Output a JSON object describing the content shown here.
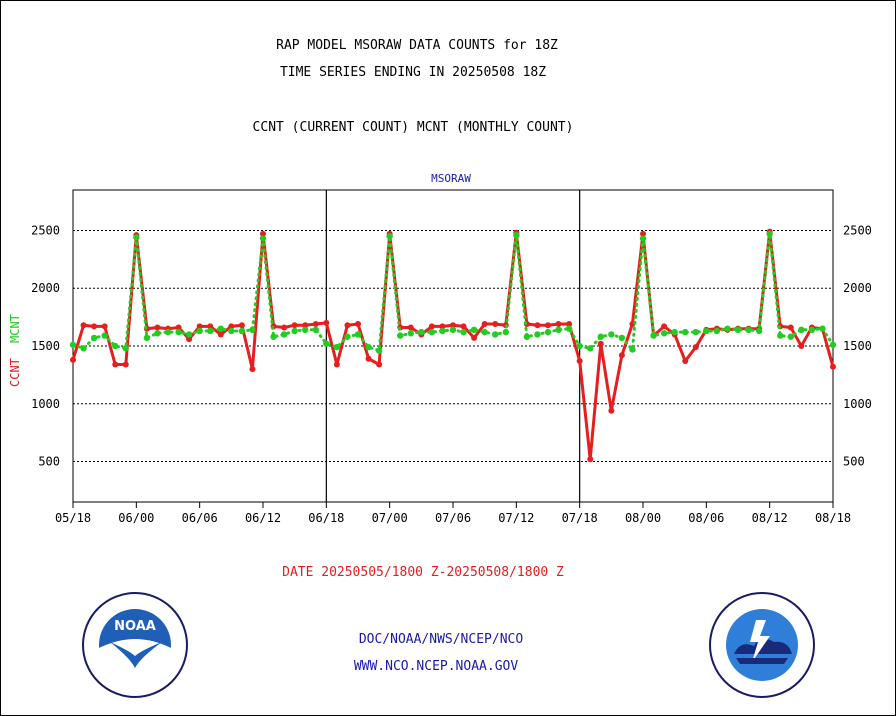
{
  "title": "RAP MODEL MSORAW DATA COUNTS for 18Z",
  "subtitle_line2": "TIME SERIES ENDING IN 20250508 18Z",
  "subtitle_line3": "CCNT (CURRENT COUNT) MCNT (MONTHLY COUNT)",
  "panel_label": "MSORAW",
  "date_range": "DATE 20250505/1800 Z-20250508/1800 Z",
  "credit_line1": "DOC/NOAA/NWS/NCEP/NCO",
  "credit_line2": "WWW.NCO.NCEP.NOAA.GOV",
  "logos": {
    "left": "noaa-logo",
    "right": "national-weather-service-logo",
    "left_text": "NOAA"
  },
  "colors": {
    "ccnt": "#e61e1e",
    "mcnt": "#22cc22",
    "title_text": "#000000",
    "credit_text": "#1a1aa8"
  },
  "chart_data": {
    "type": "line",
    "ylabel_left_ccnt": "CCNT",
    "ylabel_left_mcnt": "MCNT",
    "ylim": [
      150,
      2850
    ],
    "xlim": [
      0,
      72
    ],
    "yticks": [
      500,
      1000,
      1500,
      2000,
      2500
    ],
    "ytick_labels": [
      "500",
      "1000",
      "1500",
      "2000",
      "2500"
    ],
    "xticks": [
      0,
      6,
      12,
      18,
      24,
      30,
      36,
      42,
      48,
      54,
      60,
      66,
      72
    ],
    "xtick_labels": [
      "05/18",
      "06/00",
      "06/06",
      "06/12",
      "06/18",
      "07/00",
      "07/06",
      "07/12",
      "07/18",
      "08/00",
      "08/06",
      "08/12",
      "08/18"
    ],
    "grid": "horizontal dotted",
    "series": [
      {
        "name": "CCNT",
        "x": [
          0,
          1,
          2,
          3,
          4,
          5,
          6,
          7,
          8,
          9,
          10,
          11,
          12,
          13,
          14,
          15,
          16,
          17,
          18,
          19,
          20,
          21,
          22,
          23,
          24,
          25,
          26,
          27,
          28,
          29,
          30,
          31,
          32,
          33,
          34,
          35,
          36,
          37,
          38,
          39,
          40,
          41,
          42,
          43,
          44,
          45,
          46,
          47,
          48,
          49,
          50,
          51,
          52,
          53,
          54,
          55,
          56,
          57,
          58,
          59,
          60,
          61,
          62,
          63,
          64,
          65,
          66,
          67,
          68,
          69,
          70,
          71,
          72
        ],
        "values": [
          1380,
          1680,
          1670,
          1670,
          1340,
          1340,
          2460,
          1650,
          1660,
          1650,
          1660,
          1560,
          1670,
          1670,
          1600,
          1670,
          1680,
          1300,
          2470,
          1670,
          1660,
          1680,
          1680,
          1690,
          1700,
          1340,
          1680,
          1690,
          1390,
          1340,
          2470,
          1660,
          1660,
          1600,
          1670,
          1670,
          1680,
          1670,
          1570,
          1690,
          1690,
          1680,
          2480,
          1690,
          1680,
          1680,
          1690,
          1690,
          1370,
          520,
          1520,
          940,
          1420,
          1690,
          2470,
          1590,
          1670,
          1600,
          1370,
          1490,
          1640,
          1650,
          1640,
          1650,
          1650,
          1650,
          2490,
          1670,
          1660,
          1500,
          1660,
          1650,
          1320
        ]
      },
      {
        "name": "MCNT",
        "x": [
          0,
          1,
          2,
          3,
          4,
          5,
          6,
          7,
          8,
          9,
          10,
          11,
          12,
          13,
          14,
          15,
          16,
          17,
          18,
          19,
          20,
          21,
          22,
          23,
          24,
          25,
          26,
          27,
          28,
          29,
          30,
          31,
          32,
          33,
          34,
          35,
          36,
          37,
          38,
          39,
          40,
          41,
          42,
          43,
          44,
          45,
          46,
          47,
          48,
          49,
          50,
          51,
          52,
          53,
          54,
          55,
          56,
          57,
          58,
          59,
          60,
          61,
          62,
          63,
          64,
          65,
          66,
          67,
          68,
          69,
          70,
          71,
          72
        ],
        "values": [
          1510,
          1480,
          1570,
          1590,
          1500,
          1480,
          2440,
          1570,
          1610,
          1620,
          1620,
          1600,
          1630,
          1630,
          1650,
          1630,
          1630,
          1640,
          2430,
          1580,
          1600,
          1630,
          1640,
          1640,
          1520,
          1490,
          1580,
          1600,
          1490,
          1460,
          2450,
          1590,
          1610,
          1620,
          1620,
          1630,
          1640,
          1620,
          1640,
          1620,
          1600,
          1620,
          2460,
          1580,
          1600,
          1620,
          1640,
          1650,
          1500,
          1480,
          1580,
          1600,
          1570,
          1470,
          2430,
          1590,
          1610,
          1620,
          1620,
          1620,
          1630,
          1630,
          1650,
          1640,
          1640,
          1630,
          2470,
          1590,
          1580,
          1640,
          1640,
          1650,
          1510
        ]
      }
    ]
  }
}
